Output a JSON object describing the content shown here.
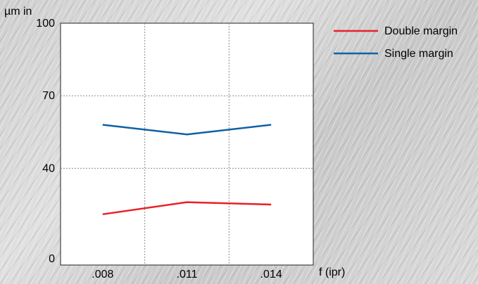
{
  "chart_data": {
    "type": "line",
    "title": "",
    "xlabel": "f (ipr)",
    "ylabel": "µm in",
    "categories": [
      ".008",
      ".011",
      ".014"
    ],
    "yticks": [
      "0",
      "40",
      "70",
      "100"
    ],
    "ylim": [
      0,
      100
    ],
    "grid": true,
    "legend_position": "right",
    "series": [
      {
        "name": "Double margin",
        "color": "#e8202a",
        "values": [
          21,
          26,
          25
        ]
      },
      {
        "name": "Single margin",
        "color": "#1060a8",
        "values": [
          58,
          54,
          58
        ]
      }
    ]
  }
}
